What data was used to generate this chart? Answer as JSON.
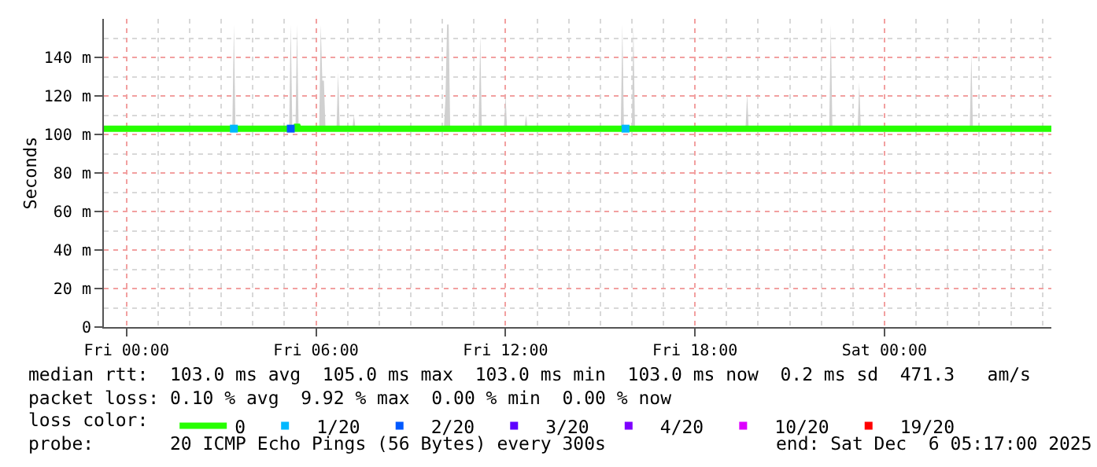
{
  "chart_data": {
    "type": "line",
    "ylabel": "Seconds",
    "xlim": [
      "2025-12-04T23:17",
      "2025-12-06T05:17"
    ],
    "xticks": [
      {
        "value": "2025-12-05T00:00",
        "label": "Fri 00:00"
      },
      {
        "value": "2025-12-05T06:00",
        "label": "Fri 06:00"
      },
      {
        "value": "2025-12-05T12:00",
        "label": "Fri 12:00"
      },
      {
        "value": "2025-12-05T18:00",
        "label": "Fri 18:00"
      },
      {
        "value": "2025-12-06T00:00",
        "label": "Sat 00:00"
      }
    ],
    "ylim": [
      0,
      160
    ],
    "yticks": [
      0,
      {
        "value": 20,
        "label": "20 m"
      },
      {
        "value": 40,
        "label": "40 m"
      },
      {
        "value": 60,
        "label": "60 m"
      },
      {
        "value": 80,
        "label": "80 m"
      },
      {
        "value": 100,
        "label": "100 m"
      },
      {
        "value": 120,
        "label": "120 m"
      },
      {
        "value": 140,
        "label": "140 m"
      }
    ],
    "grid": true,
    "legend": "bottom",
    "legend_title": "loss color:",
    "series": [
      {
        "name": "0",
        "color": "#26ff00",
        "marker": "none",
        "x": [
          "2025-12-04T23:17",
          "2025-12-05T03:21",
          "2025-12-05T03:24",
          "2025-12-05T03:27",
          "2025-12-05T05:09",
          "2025-12-05T05:12",
          "2025-12-05T05:15",
          "2025-12-05T05:21",
          "2025-12-05T05:24",
          "2025-12-05T05:27",
          "2025-12-05T06:06",
          "2025-12-05T06:09",
          "2025-12-05T06:12",
          "2025-12-05T06:15",
          "2025-12-05T06:18",
          "2025-12-05T06:39",
          "2025-12-05T06:42",
          "2025-12-05T06:45",
          "2025-12-05T07:09",
          "2025-12-05T07:12",
          "2025-12-05T07:15",
          "2025-12-05T10:03",
          "2025-12-05T10:06",
          "2025-12-05T10:09",
          "2025-12-05T10:12",
          "2025-12-05T10:15",
          "2025-12-05T11:09",
          "2025-12-05T11:12",
          "2025-12-05T11:15",
          "2025-12-05T11:57",
          "2025-12-05T12:00",
          "2025-12-05T12:03",
          "2025-12-05T12:36",
          "2025-12-05T12:39",
          "2025-12-05T12:42",
          "2025-12-05T15:39",
          "2025-12-05T15:42",
          "2025-12-05T15:45",
          "2025-12-05T16:00",
          "2025-12-05T16:03",
          "2025-12-05T16:06",
          "2025-12-05T19:36",
          "2025-12-05T19:39",
          "2025-12-05T19:42",
          "2025-12-05T22:15",
          "2025-12-05T22:18",
          "2025-12-05T22:21",
          "2025-12-05T23:09",
          "2025-12-05T23:12",
          "2025-12-05T23:15",
          "2025-12-06T02:42",
          "2025-12-06T02:45",
          "2025-12-06T02:48",
          "2025-12-06T05:17"
        ],
        "values": [
          103,
          103,
          103,
          103,
          103,
          103,
          103,
          103,
          105,
          103,
          103,
          103,
          103,
          103,
          103,
          103,
          103,
          103,
          103,
          103,
          103,
          103,
          103,
          103,
          103,
          103,
          103,
          103,
          103,
          103,
          103,
          103,
          103,
          103,
          103,
          103,
          103,
          103,
          103,
          103,
          103,
          103,
          103,
          103,
          103,
          103,
          103,
          103,
          103,
          103,
          103,
          103,
          103,
          103
        ],
        "lower": [
          103,
          103,
          103,
          103,
          103,
          103,
          103,
          103,
          103,
          103,
          103,
          103,
          103,
          103,
          103,
          103,
          103,
          103,
          103,
          103,
          103,
          103,
          103,
          103,
          103,
          103,
          103,
          103,
          103,
          103,
          103,
          103,
          103,
          103,
          103,
          103,
          103,
          103,
          103,
          103,
          103,
          103,
          103,
          103,
          103,
          103,
          103,
          103,
          103,
          103,
          103,
          103,
          103,
          103
        ],
        "upper": [
          103,
          103,
          157,
          103,
          103,
          157,
          103,
          103,
          157,
          103,
          103,
          157,
          128,
          128,
          103,
          103,
          132,
          103,
          103,
          110,
          103,
          103,
          119,
          157,
          157,
          103,
          103,
          152,
          103,
          103,
          121,
          103,
          103,
          110,
          103,
          103,
          157,
          103,
          103,
          157,
          103,
          103,
          121,
          103,
          103,
          157,
          103,
          103,
          127,
          103,
          103,
          142,
          103,
          103
        ]
      },
      {
        "name": "1/20",
        "type": "scatter",
        "color": "#00b8ff",
        "marker": "square",
        "x": [
          "2025-12-05T03:24",
          "2025-12-05T15:48"
        ],
        "values": [
          103,
          103
        ]
      },
      {
        "name": "2/20",
        "type": "scatter",
        "color": "#0059ff",
        "marker": "square",
        "x": [
          "2025-12-05T05:12"
        ],
        "values": [
          103
        ]
      },
      {
        "name": "3/20",
        "type": "scatter",
        "color": "#5e00ff",
        "marker": "square"
      },
      {
        "name": "4/20",
        "type": "scatter",
        "color": "#7e00ff",
        "marker": "square"
      },
      {
        "name": "10/20",
        "type": "scatter",
        "color": "#dd00ff",
        "marker": "square"
      },
      {
        "name": "19/20",
        "type": "scatter",
        "color": "#ff0000",
        "marker": "square"
      }
    ],
    "annotations": [
      "median rtt:  103.0 ms avg  105.0 ms max  103.0 ms min  103.0 ms now  0.2 ms sd  471.3   am/s",
      "packet loss: 0.10 % avg  9.92 % max  0.00 % min  0.00 % now",
      "probe:       20 ICMP Echo Pings (56 Bytes) every 300s",
      "end: Sat Dec  6 05:17:00 2025"
    ]
  }
}
